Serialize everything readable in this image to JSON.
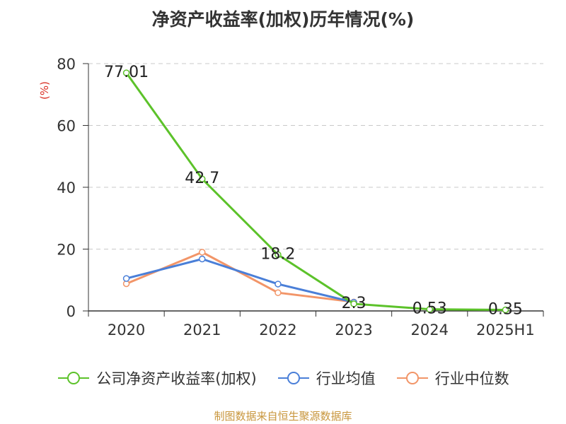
{
  "chart_data": {
    "type": "line",
    "title": "净资产收益率(加权)历年情况(%)",
    "ylabel": "(%)",
    "categories": [
      "2020",
      "2021",
      "2022",
      "2023",
      "2024",
      "2025H1"
    ],
    "ylim": [
      0,
      80
    ],
    "yticks": [
      0,
      20,
      40,
      60,
      80
    ],
    "grid": true,
    "legend_position": "bottom",
    "series": [
      {
        "name": "公司净资产收益率(加权)",
        "values": [
          77.01,
          42.7,
          18.2,
          2.3,
          0.53,
          0.35
        ],
        "data_labels": [
          "77.01",
          "42.7",
          "18.2",
          "2.3",
          "0.53",
          "0.35"
        ],
        "color": "#5cc22a"
      },
      {
        "name": "行业均值",
        "values": [
          10.5,
          16.8,
          8.7,
          2.8,
          null,
          null
        ],
        "color": "#4a7fd8"
      },
      {
        "name": "行业中位数",
        "values": [
          8.8,
          19.0,
          5.9,
          2.9,
          null,
          null
        ],
        "color": "#f29568"
      }
    ]
  },
  "footer": {
    "source": "制图数据来自恒生聚源数据库"
  }
}
